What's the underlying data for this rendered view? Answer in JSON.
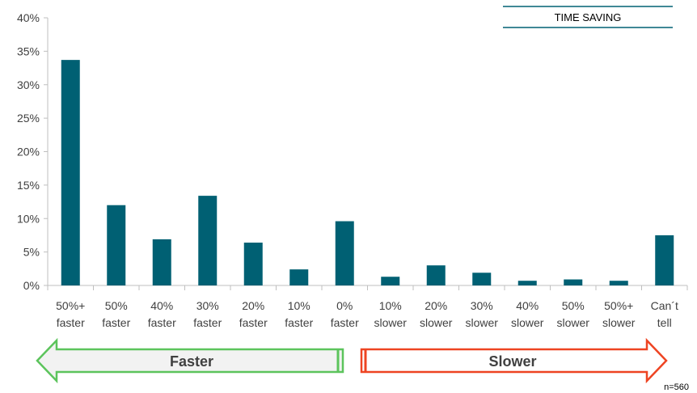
{
  "chart_data": {
    "type": "bar",
    "title": "TIME SAVING",
    "xlabel": "",
    "ylabel": "",
    "ylim": [
      0,
      40
    ],
    "y_ticks": [
      "0%",
      "5%",
      "10%",
      "15%",
      "20%",
      "25%",
      "30%",
      "35%",
      "40%"
    ],
    "grid": false,
    "categories": [
      [
        "50%+",
        "faster"
      ],
      [
        "50%",
        "faster"
      ],
      [
        "40%",
        "faster"
      ],
      [
        "30%",
        "faster"
      ],
      [
        "20%",
        "faster"
      ],
      [
        "10%",
        "faster"
      ],
      [
        "0%",
        "faster"
      ],
      [
        "10%",
        "slower"
      ],
      [
        "20%",
        "slower"
      ],
      [
        "30%",
        "slower"
      ],
      [
        "40%",
        "slower"
      ],
      [
        "50%",
        "slower"
      ],
      [
        "50%+",
        "slower"
      ],
      [
        "Can´t",
        "tell"
      ]
    ],
    "values": [
      33.7,
      12.0,
      6.9,
      13.4,
      6.4,
      2.4,
      9.6,
      1.3,
      3.0,
      1.9,
      0.7,
      0.9,
      0.7,
      7.5
    ],
    "bar_color": "#006073",
    "annotations": {
      "faster_label": "Faster",
      "slower_label": "Slower",
      "faster_color": "#5cc45c",
      "slower_color": "#ee4422",
      "sample_note": "n=560"
    }
  }
}
